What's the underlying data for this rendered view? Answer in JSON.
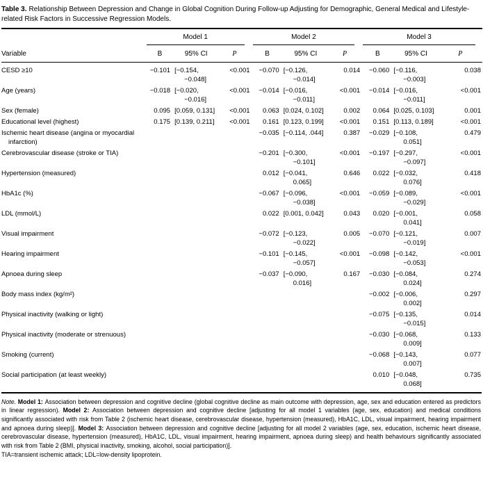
{
  "title": {
    "label": "Table 3.",
    "text": "Relationship Between Depression and Change in Global Cognition During Follow-up Adjusting for Demographic, General Medical and Lifestyle-related Risk Factors in Successive Regression Models."
  },
  "header": {
    "variable_label": "Variable",
    "models": [
      "Model 1",
      "Model 2",
      "Model 3"
    ],
    "stat_labels": [
      "B",
      "95% CI",
      "P"
    ]
  },
  "rows": [
    {
      "variable": "CESD ≥10",
      "m1": {
        "b": "−0.101",
        "ci": "[−0.154, −0.048]",
        "p": "<0.001"
      },
      "m2": {
        "b": "−0.070",
        "ci": "[−0.126, −0.014]",
        "p": "0.014"
      },
      "m3": {
        "b": "−0.060",
        "ci": "[−0.116, −0.003]",
        "p": "0.038"
      }
    },
    {
      "variable": "Age (years)",
      "m1": {
        "b": "−0.018",
        "ci": "[−0.020, −0.016]",
        "p": "<0.001"
      },
      "m2": {
        "b": "−0.014",
        "ci": "[−0.016, −0.011]",
        "p": "<0.001"
      },
      "m3": {
        "b": "−0.014",
        "ci": "[−0.016, −0.011]",
        "p": "<0.001"
      }
    },
    {
      "variable": "Sex (female)",
      "m1": {
        "b": "0.095",
        "ci": "[0.059, 0.131]",
        "p": "<0.001"
      },
      "m2": {
        "b": "0.063",
        "ci": "[0.024, 0.102]",
        "p": "0.002"
      },
      "m3": {
        "b": "0.064",
        "ci": "[0.025, 0.103]",
        "p": "0.001"
      }
    },
    {
      "variable": "Educational level (highest)",
      "m1": {
        "b": "0.175",
        "ci": "[0.139, 0.211]",
        "p": "<0.001"
      },
      "m2": {
        "b": "0.161",
        "ci": "[0.123, 0.199]",
        "p": "<0.001"
      },
      "m3": {
        "b": "0.151",
        "ci": "[0.113, 0.189]",
        "p": "<0.001"
      }
    },
    {
      "variable": "Ischemic heart disease (angina or myocardial infarction)",
      "m1": null,
      "m2": {
        "b": "−0.035",
        "ci": "[−0.114, .044]",
        "p": "0.387"
      },
      "m3": {
        "b": "−0.029",
        "ci": "[−0.108, 0.051]",
        "p": "0.479"
      }
    },
    {
      "variable": "Cerebrovascular disease (stroke or TIA)",
      "m1": null,
      "m2": {
        "b": "−0.201",
        "ci": "[−0.300, −0.101]",
        "p": "<0.001"
      },
      "m3": {
        "b": "−0.197",
        "ci": "[−0.297, −0.097]",
        "p": "<0.001"
      }
    },
    {
      "variable": "Hypertension (measured)",
      "m1": null,
      "m2": {
        "b": "0.012",
        "ci": "[−0.041, 0.065]",
        "p": "0.646"
      },
      "m3": {
        "b": "0.022",
        "ci": "[−0.032, 0.076]",
        "p": "0.418"
      }
    },
    {
      "variable": "HbA1c (%)",
      "m1": null,
      "m2": {
        "b": "−0.067",
        "ci": "[−0.096, −0.038]",
        "p": "<0.001"
      },
      "m3": {
        "b": "−0.059",
        "ci": "[−0.089, −0.029]",
        "p": "<0.001"
      }
    },
    {
      "variable": "LDL (mmol/L)",
      "m1": null,
      "m2": {
        "b": "0.022",
        "ci": "[0.001, 0.042]",
        "p": "0.043"
      },
      "m3": {
        "b": "0.020",
        "ci": "[−0.001, 0.041]",
        "p": "0.058"
      }
    },
    {
      "variable": "Visual impairment",
      "m1": null,
      "m2": {
        "b": "−0.072",
        "ci": "[−0.123, −0.022]",
        "p": "0.005"
      },
      "m3": {
        "b": "−0.070",
        "ci": "[−0.121, −0.019]",
        "p": "0.007"
      }
    },
    {
      "variable": "Hearing impairment",
      "m1": null,
      "m2": {
        "b": "−0.101",
        "ci": "[−0.145, −0.057]",
        "p": "<0.001"
      },
      "m3": {
        "b": "−0.098",
        "ci": "[−0.142, −0.053]",
        "p": "<0.001"
      }
    },
    {
      "variable": "Apnoea during sleep",
      "m1": null,
      "m2": {
        "b": "−0.037",
        "ci": "[−0.090, 0.016]",
        "p": "0.167"
      },
      "m3": {
        "b": "−0.030",
        "ci": "[−0.084, 0.024]",
        "p": "0.274"
      }
    },
    {
      "variable": "Body mass index (kg/m²)",
      "m1": null,
      "m2": null,
      "m3": {
        "b": "−0.002",
        "ci": "[−0.006, 0.002]",
        "p": "0.297"
      }
    },
    {
      "variable": "Physical inactivity (walking or light)",
      "m1": null,
      "m2": null,
      "m3": {
        "b": "−0.075",
        "ci": "[−0.135, −0.015]",
        "p": "0.014"
      }
    },
    {
      "variable": "Physical inactivity (moderate or strenuous)",
      "m1": null,
      "m2": null,
      "m3": {
        "b": "−0.030",
        "ci": "[−0.068, 0.009]",
        "p": "0.133"
      }
    },
    {
      "variable": "Smoking (current)",
      "m1": null,
      "m2": null,
      "m3": {
        "b": "−0.068",
        "ci": "[−0.143, 0.007]",
        "p": "0.077"
      }
    },
    {
      "variable": "Social participation (at least weekly)",
      "m1": null,
      "m2": null,
      "m3": {
        "b": "0.010",
        "ci": "[−0.048, 0.068]",
        "p": "0.735"
      }
    }
  ],
  "footnote": {
    "segments": [
      {
        "style": "italic",
        "text": "Note. "
      },
      {
        "style": "bold",
        "text": "Model 1: "
      },
      {
        "style": "normal",
        "text": "Association between depression and cognitive decline (global cognitive decline as main outcome with depression, age, sex and education entered as predictors in linear regression). "
      },
      {
        "style": "bold",
        "text": "Model 2: "
      },
      {
        "style": "normal",
        "text": "Association between depression and cognitive decline [adjusting for all model 1 variables (age, sex, education) and medical conditions significantly associated with risk from Table 2 (ischemic heart disease, cerebrovascular disease, hypertension (measured), HbA1C, LDL, visual impairment, hearing impairment and apnoea during sleep)]. "
      },
      {
        "style": "bold",
        "text": "Model 3: "
      },
      {
        "style": "normal",
        "text": "Association between depression and cognitive decline [adjusting for all model 2 variables (age, sex, education, ischemic heart disease, cerebrovascular disease, hypertension (measured), HbA1C, LDL, visual impairment, hearing impairment, apnoea during sleep) and health behaviours significantly associated with risk from Table 2 (BMI, physical inactivity, smoking, alcohol, social participation)]."
      }
    ],
    "abbreviations": "TIA=transient ischemic attack; LDL=low-density lipoprotein."
  }
}
